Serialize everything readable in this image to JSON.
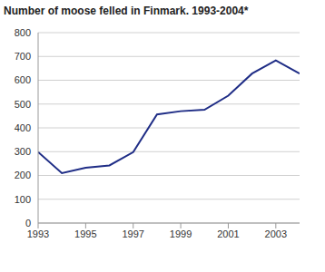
{
  "chart_data": {
    "type": "line",
    "title": "Number of moose felled in Finmark. 1993-2004*",
    "x": [
      1993,
      1994,
      1995,
      1996,
      1997,
      1998,
      1999,
      2000,
      2001,
      2002,
      2003,
      2004
    ],
    "values": [
      298,
      210,
      232,
      242,
      298,
      456,
      470,
      476,
      535,
      628,
      683,
      628
    ],
    "color": "#1f2d86",
    "xlim": [
      1993,
      2004
    ],
    "xticks": [
      1993,
      1995,
      1997,
      1999,
      2001,
      2003
    ],
    "ylim": [
      0,
      800
    ],
    "yticks": [
      0,
      100,
      200,
      300,
      400,
      500,
      600,
      700,
      800
    ],
    "grid": true
  }
}
